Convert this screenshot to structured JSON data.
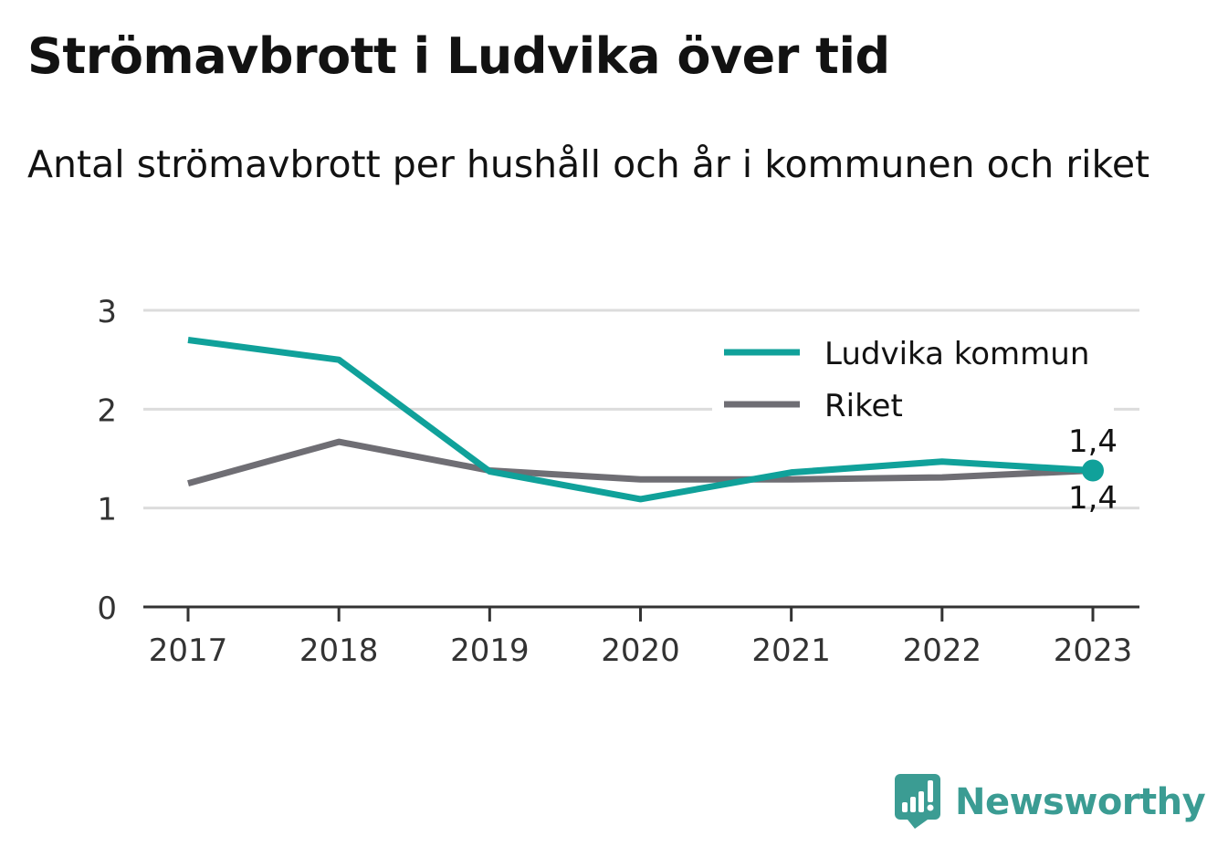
{
  "title": "Strömavbrott i Ludvika över tid",
  "subtitle": "Antal strömavbrott per hushåll och år i kommunen och riket",
  "brand": {
    "name": "Newsworthy",
    "icon": "newsworthy-logo-icon",
    "color": "#3b9c93"
  },
  "chart_data": {
    "type": "line",
    "title": "Strömavbrott i Ludvika över tid",
    "subtitle": "Antal strömavbrott per hushåll och år i kommunen och riket",
    "xlabel": "",
    "ylabel": "",
    "categories": [
      "2017",
      "2018",
      "2019",
      "2020",
      "2021",
      "2022",
      "2023"
    ],
    "ylim": [
      0,
      3
    ],
    "yticks": [
      "0",
      "1",
      "2",
      "3"
    ],
    "grid": true,
    "legend_position": "top-right",
    "series": [
      {
        "name": "Ludvika kommun",
        "color": "#10a19a",
        "values": [
          2.7,
          2.5,
          1.37,
          1.09,
          1.36,
          1.47,
          1.38
        ]
      },
      {
        "name": "Riket",
        "color": "#6f6e74",
        "values": [
          1.25,
          1.67,
          1.38,
          1.29,
          1.29,
          1.31,
          1.38
        ]
      }
    ],
    "annotations": [
      {
        "series": "Ludvika kommun",
        "category": "2023",
        "label": "1,4"
      },
      {
        "series": "Riket",
        "category": "2023",
        "label": "1,4"
      }
    ]
  }
}
